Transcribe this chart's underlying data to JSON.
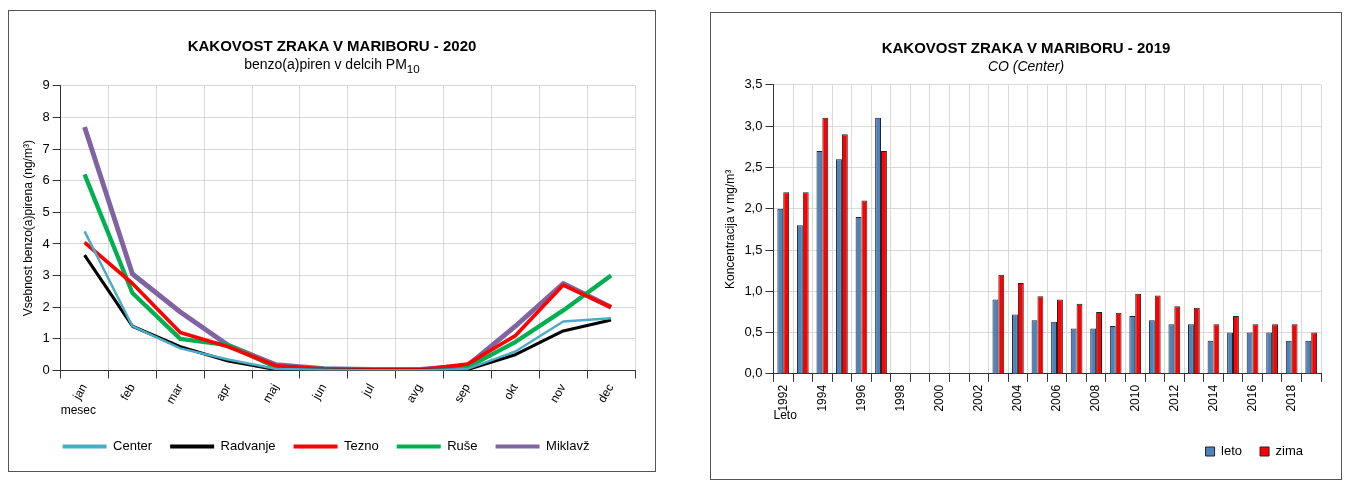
{
  "chart_data": [
    {
      "type": "line",
      "title": "KAKOVOST ZRAKA V MARIBORU - 2020",
      "subtitle": "benzo(a)piren v delcih PM$_{10}$",
      "ylabel": "Vsebnost benzo(a)pirena (ng/m³)",
      "xlabel": "mesec",
      "categories": [
        "jan",
        "feb",
        "mar",
        "apr",
        "maj",
        "jun",
        "jul",
        "avg",
        "sep",
        "okt",
        "nov",
        "dec"
      ],
      "ylim": [
        0,
        9
      ],
      "yticks": [
        0,
        1,
        2,
        3,
        4,
        5,
        6,
        7,
        8,
        9
      ],
      "grid": true,
      "legend": "bottom",
      "marker": "none",
      "line_style": "solid",
      "series": [
        {
          "name": "Center",
          "color": "#4bacc6",
          "values": [
            4.4,
            1.4,
            0.7,
            0.35,
            0.05,
            0.02,
            0.01,
            0.01,
            0.05,
            0.6,
            1.55,
            1.65
          ]
        },
        {
          "name": "Radvanje",
          "color": "#000000",
          "values": [
            3.65,
            1.4,
            0.75,
            0.3,
            0.03,
            0.02,
            0.01,
            0.01,
            0.03,
            0.5,
            1.25,
            1.6
          ]
        },
        {
          "name": "Tezno",
          "color": "#ff0000",
          "values": [
            4.05,
            2.75,
            1.2,
            0.75,
            0.15,
            0.05,
            0.02,
            0.02,
            0.2,
            1.1,
            2.7,
            2.0
          ]
        },
        {
          "name": "Ruše",
          "color": "#00b050",
          "values": [
            6.2,
            2.45,
            1.0,
            0.8,
            0.1,
            0.05,
            0.02,
            0.02,
            0.1,
            0.9,
            1.9,
            3.0
          ]
        },
        {
          "name": "Miklavž",
          "color": "#8064a2",
          "values": [
            7.7,
            3.05,
            1.85,
            0.8,
            0.18,
            0.06,
            0.03,
            0.03,
            0.15,
            1.4,
            2.75,
            2.0
          ]
        }
      ]
    },
    {
      "type": "bar",
      "title": "KAKOVOST  ZRAKA V MARIBORU  - 2019",
      "subtitle": "CO (Center)",
      "ylabel": "Koncentracija v mg/m³",
      "xlabel": "Leto",
      "categories": [
        "1992",
        null,
        "1994",
        null,
        "1996",
        null,
        "1998",
        null,
        "2000",
        null,
        "2002",
        null,
        "2004",
        null,
        "2006",
        null,
        "2008",
        null,
        "2010",
        null,
        "2012",
        null,
        "2014",
        null,
        "2016",
        null,
        "2018",
        null
      ],
      "ylim": [
        0,
        3.5
      ],
      "yticks": [
        {
          "value": 0,
          "label": "0,0"
        },
        {
          "value": 0.5,
          "label": "0,5"
        },
        {
          "value": 1,
          "label": "1,0"
        },
        {
          "value": 1.5,
          "label": "1,5"
        },
        {
          "value": 2,
          "label": "2,0"
        },
        {
          "value": 2.5,
          "label": "2,5"
        },
        {
          "value": 3,
          "label": "3,0"
        },
        {
          "value": 3.5,
          "label": "3,5"
        }
      ],
      "grid": true,
      "legend": "bottom right",
      "series": [
        {
          "name": "leto",
          "color": "#4f81bd",
          "values": [
            2.0,
            1.8,
            2.7,
            2.6,
            1.9,
            3.1,
            null,
            null,
            null,
            null,
            null,
            0.9,
            0.72,
            0.65,
            0.63,
            0.55,
            0.55,
            0.58,
            0.7,
            0.65,
            0.6,
            0.6,
            0.4,
            0.5,
            0.5,
            0.5,
            0.4,
            0.4
          ]
        },
        {
          "name": "zima",
          "color": "#ff0000",
          "values": [
            2.2,
            2.2,
            3.1,
            2.9,
            2.1,
            2.7,
            null,
            null,
            null,
            null,
            null,
            1.2,
            1.1,
            0.94,
            0.9,
            0.85,
            0.75,
            0.74,
            0.97,
            0.95,
            0.82,
            0.8,
            0.6,
            0.7,
            0.6,
            0.6,
            0.6,
            0.5
          ]
        }
      ]
    }
  ]
}
